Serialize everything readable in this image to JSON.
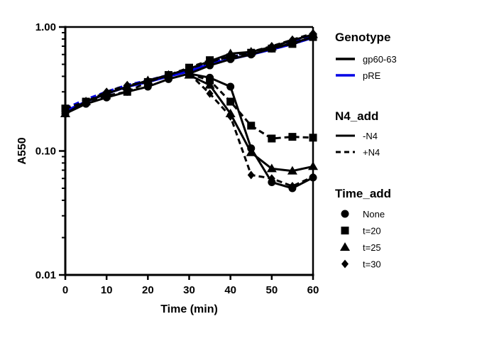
{
  "chart_data": {
    "type": "line",
    "xlabel": "Time (min)",
    "ylabel": "A550",
    "x_ticks": [
      "0",
      "10",
      "20",
      "30",
      "40",
      "50",
      "60"
    ],
    "y_ticks": [
      "0.01",
      "0.10",
      "1.00"
    ],
    "xlim": [
      0,
      60
    ],
    "ylim": [
      0.01,
      1.0
    ],
    "yscale": "log",
    "grid": false,
    "legend_placement": "right",
    "colors": {
      "gp60-63": "#000000",
      "pRE": "#0000e6"
    },
    "legend": {
      "genotype": {
        "title": "Genotype",
        "items": [
          {
            "label": "gp60-63",
            "color": "#000000"
          },
          {
            "label": "pRE",
            "color": "#0000e6"
          }
        ]
      },
      "n4_add": {
        "title": "N4_add",
        "items": [
          {
            "label": "-N4",
            "dash": "solid"
          },
          {
            "label": "+N4",
            "dash": "dashed"
          }
        ]
      },
      "time_add": {
        "title": "Time_add",
        "items": [
          {
            "label": "None",
            "marker": "circle"
          },
          {
            "label": "t=20",
            "marker": "square"
          },
          {
            "label": "t=25",
            "marker": "triangle"
          },
          {
            "label": "t=30",
            "marker": "diamond"
          }
        ]
      }
    },
    "series": [
      {
        "genotype": "pRE",
        "n4_add": "-N4",
        "time_add": "None",
        "color": "#0000e6",
        "dash": "solid",
        "marker": "none",
        "x": [
          0,
          5,
          10,
          15,
          20,
          25,
          30,
          35,
          40,
          45,
          50,
          55,
          60
        ],
        "y": [
          0.21,
          0.25,
          0.29,
          0.33,
          0.36,
          0.4,
          0.44,
          0.5,
          0.55,
          0.6,
          0.66,
          0.73,
          0.82
        ]
      },
      {
        "genotype": "pRE",
        "n4_add": "+N4",
        "time_add": "None",
        "color": "#0000e6",
        "dash": "dashed",
        "marker": "none",
        "x": [
          0,
          5,
          10,
          15,
          20,
          25,
          30,
          35,
          40,
          45,
          50,
          55,
          60
        ],
        "y": [
          0.22,
          0.26,
          0.3,
          0.34,
          0.37,
          0.41,
          0.45,
          0.51,
          0.57,
          0.62,
          0.68,
          0.76,
          0.85
        ]
      },
      {
        "genotype": "gp60-63",
        "n4_add": "-N4",
        "time_add": "None",
        "color": "#000000",
        "dash": "solid",
        "marker": "circle",
        "x": [
          0,
          5,
          10,
          15,
          20,
          25,
          30,
          35,
          40,
          45,
          50,
          55,
          60
        ],
        "y": [
          0.2,
          0.24,
          0.27,
          0.3,
          0.33,
          0.38,
          0.42,
          0.49,
          0.55,
          0.6,
          0.67,
          0.74,
          0.83
        ]
      },
      {
        "genotype": "gp60-63",
        "n4_add": "+N4",
        "time_add": "t=20",
        "color": "#000000",
        "dash": "dashed",
        "marker": "square",
        "x": [
          0,
          5,
          10,
          15,
          20,
          25,
          30,
          35,
          40,
          45,
          50,
          55,
          60
        ],
        "y": [
          0.22,
          0.25,
          0.28,
          0.3,
          0.36,
          0.41,
          0.47,
          0.54,
          0.57,
          0.62,
          0.67,
          0.73,
          0.83
        ]
      },
      {
        "genotype": "gp60-63",
        "n4_add": "-N4",
        "time_add": "t=25",
        "color": "#000000",
        "dash": "solid",
        "marker": "triangle",
        "x": [
          0,
          5,
          10,
          15,
          20,
          25,
          30,
          35,
          40,
          45,
          50,
          55,
          60
        ],
        "y": [
          0.2,
          0.25,
          0.29,
          0.33,
          0.37,
          0.41,
          0.46,
          0.53,
          0.61,
          0.63,
          0.69,
          0.78,
          0.87
        ]
      },
      {
        "genotype": "gp60-63",
        "n4_add": "+N4",
        "time_add": "t=30",
        "color": "#000000",
        "dash": "dashed",
        "marker": "diamond",
        "x": [
          0,
          5,
          10,
          15,
          20,
          25,
          30,
          35,
          40,
          45,
          50,
          55,
          60
        ],
        "y": [
          0.2,
          0.25,
          0.3,
          0.34,
          0.36,
          0.41,
          0.46,
          0.52,
          0.58,
          0.63,
          0.7,
          0.79,
          0.89
        ]
      },
      {
        "genotype": "gp60-63",
        "n4_add": "-N4",
        "time_add": "None",
        "color": "#000000",
        "dash": "solid",
        "marker": "circle",
        "x": [
          30,
          35,
          40,
          45,
          50,
          55,
          60
        ],
        "y": [
          0.42,
          0.39,
          0.33,
          0.105,
          0.056,
          0.05,
          0.061
        ]
      },
      {
        "genotype": "gp60-63",
        "n4_add": "+N4",
        "time_add": "t=20",
        "color": "#000000",
        "dash": "dashed",
        "marker": "square",
        "x": [
          30,
          35,
          40,
          45,
          50,
          55,
          60
        ],
        "y": [
          0.42,
          0.37,
          0.25,
          0.16,
          0.126,
          0.13,
          0.128
        ]
      },
      {
        "genotype": "gp60-63",
        "n4_add": "-N4",
        "time_add": "t=25",
        "color": "#000000",
        "dash": "solid",
        "marker": "triangle",
        "x": [
          30,
          35,
          40,
          45,
          50,
          55,
          60
        ],
        "y": [
          0.41,
          0.34,
          0.2,
          0.097,
          0.072,
          0.069,
          0.075
        ]
      },
      {
        "genotype": "gp60-63",
        "n4_add": "+N4",
        "time_add": "t=30",
        "color": "#000000",
        "dash": "dashed",
        "marker": "diamond",
        "x": [
          30,
          35,
          40,
          45,
          50,
          55,
          60
        ],
        "y": [
          0.42,
          0.29,
          0.19,
          0.064,
          0.06,
          0.052,
          0.062
        ]
      }
    ]
  }
}
